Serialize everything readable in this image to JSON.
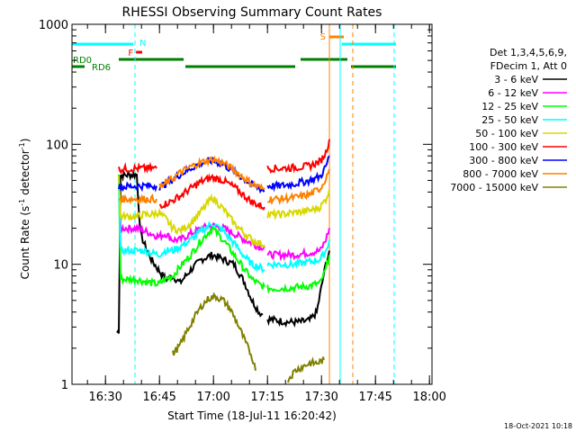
{
  "chart_data": {
    "type": "line",
    "title": "RHESSI Observing Summary Count Rates",
    "xlabel": "Start Time (18-Jul-11 16:20:42)",
    "ylabel_main": "Count Rate (s",
    "ylabel_sup1": "-1",
    "ylabel_mid": " detector",
    "ylabel_sup2": "-1",
    "ylabel_end": ")",
    "x_unit": "minutes since 16:20:42",
    "xlim": [
      0,
      100
    ],
    "ylim": [
      1,
      1000
    ],
    "yscale": "log",
    "x_ticks": [
      {
        "label": "16:30",
        "value": 9.3
      },
      {
        "label": "16:45",
        "value": 24.3
      },
      {
        "label": "17:00",
        "value": 39.3
      },
      {
        "label": "17:15",
        "value": 54.3
      },
      {
        "label": "17:30",
        "value": 69.3
      },
      {
        "label": "17:45",
        "value": 84.3
      },
      {
        "label": "18:00",
        "value": 99.3
      }
    ],
    "y_ticks": [
      {
        "label": "1",
        "value": 1
      },
      {
        "label": "10",
        "value": 10
      },
      {
        "label": "100",
        "value": 100
      },
      {
        "label": "1000",
        "value": 1000
      }
    ],
    "legend_header": [
      "Det 1,3,4,5,6,9,",
      "FDecim 1, Att 0"
    ],
    "legend_position": "right",
    "series": [
      {
        "name": "3 - 6 keV",
        "color": "#000000",
        "segments": [
          [
            [
              12.5,
              2.7
            ],
            [
              13,
              2.8
            ],
            [
              13.5,
              55
            ],
            [
              18,
              56
            ],
            [
              19,
              18
            ],
            [
              20,
              15
            ],
            [
              22,
              11
            ],
            [
              24,
              9
            ],
            [
              26,
              7.5
            ],
            [
              28,
              8
            ],
            [
              30,
              7
            ],
            [
              33,
              9
            ],
            [
              36,
              11
            ],
            [
              39,
              12
            ],
            [
              42,
              11
            ],
            [
              45,
              10
            ],
            [
              48,
              7
            ],
            [
              50,
              5
            ],
            [
              52,
              4
            ],
            [
              53,
              3.8
            ]
          ],
          [
            [
              54.3,
              3.5
            ],
            [
              57,
              3.4
            ],
            [
              60,
              3.3
            ],
            [
              63,
              3.3
            ],
            [
              66,
              3.4
            ],
            [
              68,
              4
            ],
            [
              69.5,
              7
            ],
            [
              70.5,
              10
            ],
            [
              71.5,
              13
            ]
          ]
        ]
      },
      {
        "name": "6 - 12 keV",
        "color": "#ff00ff",
        "segments": [
          [
            [
              13,
              55
            ],
            [
              13.5,
              20
            ],
            [
              18,
              20
            ],
            [
              20,
              19
            ],
            [
              22,
              18
            ],
            [
              24,
              17
            ],
            [
              26,
              18
            ],
            [
              28,
              16
            ],
            [
              30,
              16
            ],
            [
              33,
              18
            ],
            [
              36,
              20
            ],
            [
              39,
              21
            ],
            [
              42,
              20
            ],
            [
              45,
              18
            ],
            [
              48,
              16
            ],
            [
              50,
              15
            ],
            [
              52,
              14
            ],
            [
              53.5,
              14
            ]
          ],
          [
            [
              54.3,
              12
            ],
            [
              58,
              12
            ],
            [
              62,
              12
            ],
            [
              66,
              12.5
            ],
            [
              69,
              13
            ],
            [
              70.5,
              16
            ],
            [
              71.5,
              20
            ]
          ]
        ]
      },
      {
        "name": "12 - 25 keV",
        "color": "#00ff00",
        "segments": [
          [
            [
              13,
              55
            ],
            [
              13.5,
              7.5
            ],
            [
              18,
              7.5
            ],
            [
              20,
              7.2
            ],
            [
              22,
              7
            ],
            [
              24,
              6.8
            ],
            [
              26,
              7.5
            ],
            [
              28,
              8
            ],
            [
              30,
              9.5
            ],
            [
              33,
              12
            ],
            [
              36,
              16
            ],
            [
              39,
              20
            ],
            [
              42,
              16
            ],
            [
              45,
              12
            ],
            [
              48,
              9
            ],
            [
              50,
              7.5
            ],
            [
              52,
              6.8
            ],
            [
              53.5,
              6.5
            ]
          ],
          [
            [
              54.3,
              6.3
            ],
            [
              58,
              6.3
            ],
            [
              62,
              6.4
            ],
            [
              66,
              6.6
            ],
            [
              69,
              7
            ],
            [
              70.5,
              9
            ],
            [
              71.5,
              12
            ]
          ]
        ]
      },
      {
        "name": "25 - 50 keV",
        "color": "#00ffff",
        "segments": [
          [
            [
              13,
              55
            ],
            [
              13.5,
              13
            ],
            [
              18,
              13
            ],
            [
              20,
              13
            ],
            [
              22,
              12.5
            ],
            [
              24,
              12
            ],
            [
              26,
              13
            ],
            [
              28,
              13
            ],
            [
              30,
              14
            ],
            [
              33,
              16
            ],
            [
              36,
              19
            ],
            [
              39,
              22
            ],
            [
              42,
              19
            ],
            [
              45,
              15
            ],
            [
              48,
              11.5
            ],
            [
              50,
              10
            ],
            [
              52,
              9.5
            ],
            [
              53.5,
              9
            ]
          ],
          [
            [
              54.3,
              10
            ],
            [
              58,
              10
            ],
            [
              62,
              10
            ],
            [
              66,
              10.5
            ],
            [
              69,
              11
            ],
            [
              70.5,
              13
            ],
            [
              71.5,
              16
            ]
          ]
        ]
      },
      {
        "name": "50 - 100 keV",
        "color": "#d8d800",
        "segments": [
          [
            [
              13,
              55
            ],
            [
              13.5,
              25
            ],
            [
              18,
              25
            ],
            [
              20,
              26
            ],
            [
              22,
              26
            ],
            [
              24,
              27
            ],
            [
              26,
              24
            ],
            [
              28,
              20
            ],
            [
              30,
              19
            ],
            [
              33,
              22
            ],
            [
              36,
              28
            ],
            [
              39,
              36
            ],
            [
              42,
              29
            ],
            [
              45,
              22
            ],
            [
              48,
              18
            ],
            [
              50,
              16
            ],
            [
              52,
              15
            ],
            [
              53.5,
              14.5
            ]
          ],
          [
            [
              54.3,
              26
            ],
            [
              58,
              26
            ],
            [
              62,
              27
            ],
            [
              66,
              28
            ],
            [
              69,
              30
            ],
            [
              70.5,
              35
            ],
            [
              71.5,
              42
            ]
          ]
        ]
      },
      {
        "name": "100 - 300 keV",
        "color": "#ff0000",
        "segments": [
          [
            [
              13,
              62
            ],
            [
              18,
              63
            ],
            [
              20,
              63
            ],
            [
              22,
              63
            ],
            [
              23.5,
              63
            ]
          ],
          [
            [
              24.3,
              31
            ],
            [
              26,
              32
            ],
            [
              28,
              34
            ],
            [
              30,
              37
            ],
            [
              33,
              43
            ],
            [
              36,
              49
            ],
            [
              39,
              53
            ],
            [
              42,
              50
            ],
            [
              45,
              44
            ],
            [
              48,
              37
            ],
            [
              50,
              33
            ],
            [
              52,
              31
            ],
            [
              53.5,
              30
            ]
          ],
          [
            [
              54.3,
              63
            ],
            [
              58,
              63
            ],
            [
              62,
              64
            ],
            [
              66,
              66
            ],
            [
              69,
              72
            ],
            [
              70.5,
              85
            ],
            [
              71.5,
              110
            ]
          ]
        ]
      },
      {
        "name": "300 - 800 keV",
        "color": "#0000ff",
        "segments": [
          [
            [
              13,
              44
            ],
            [
              18,
              45
            ],
            [
              20,
              45
            ],
            [
              22,
              45
            ],
            [
              23.5,
              45
            ]
          ],
          [
            [
              24.3,
              44
            ],
            [
              26,
              47
            ],
            [
              28,
              51
            ],
            [
              30,
              56
            ],
            [
              33,
              63
            ],
            [
              36,
              70
            ],
            [
              39,
              73
            ],
            [
              42,
              68
            ],
            [
              45,
              59
            ],
            [
              48,
              51
            ],
            [
              50,
              46
            ],
            [
              52,
              43
            ],
            [
              53.5,
              41
            ]
          ],
          [
            [
              54.3,
              45
            ],
            [
              58,
              45
            ],
            [
              62,
              47
            ],
            [
              66,
              50
            ],
            [
              69,
              54
            ],
            [
              70.5,
              65
            ],
            [
              71.5,
              80
            ]
          ]
        ]
      },
      {
        "name": "800 - 7000 keV",
        "color": "#ff8000",
        "segments": [
          [
            [
              13,
              35
            ],
            [
              18,
              35
            ],
            [
              20,
              35
            ],
            [
              22,
              35
            ],
            [
              23.5,
              35
            ]
          ],
          [
            [
              24.3,
              44
            ],
            [
              26,
              47
            ],
            [
              28,
              52
            ],
            [
              30,
              58
            ],
            [
              33,
              65
            ],
            [
              36,
              71
            ],
            [
              39,
              75
            ],
            [
              42,
              70
            ],
            [
              45,
              61
            ],
            [
              48,
              52
            ],
            [
              50,
              47
            ],
            [
              52,
              44
            ],
            [
              53.5,
              42
            ]
          ],
          [
            [
              54.3,
              35
            ],
            [
              58,
              35
            ],
            [
              62,
              36
            ],
            [
              66,
              38
            ],
            [
              69,
              43
            ],
            [
              70.5,
              52
            ],
            [
              71.5,
              62
            ]
          ]
        ]
      },
      {
        "name": "7000 - 15000 keV",
        "color": "#808000",
        "segments": [
          [
            [
              28,
              1.8
            ],
            [
              30,
              2.1
            ],
            [
              32,
              2.8
            ],
            [
              34,
              3.6
            ],
            [
              36,
              4.5
            ],
            [
              38,
              5.2
            ],
            [
              40,
              5.4
            ],
            [
              42,
              5.0
            ],
            [
              44,
              4.2
            ],
            [
              46,
              3.2
            ],
            [
              48,
              2.3
            ],
            [
              50,
              1.7
            ],
            [
              51,
              1.3
            ]
          ],
          [
            [
              60,
              1.1
            ],
            [
              62,
              1.3
            ],
            [
              64,
              1.4
            ],
            [
              66,
              1.5
            ],
            [
              68,
              1.5
            ],
            [
              70,
              1.6
            ]
          ]
        ]
      }
    ],
    "attenuator_spans": [
      {
        "label": "RD0",
        "color": "#008000",
        "level": "upper",
        "ranges": [
          [
            13,
            31
          ],
          [
            63.5,
            76.5
          ]
        ]
      },
      {
        "label": "RD6",
        "color": "#008000",
        "level": "lower",
        "ranges": [
          [
            0,
            3.5
          ],
          [
            31.5,
            62
          ],
          [
            77.5,
            90
          ]
        ]
      },
      {
        "label": "F",
        "color": "#ff0000",
        "level": "flare",
        "ranges": [
          [
            17.8,
            19.5
          ]
        ]
      },
      {
        "label": "N",
        "color": "#00ffff",
        "level": "night",
        "ranges": [
          [
            0,
            17
          ],
          [
            75,
            90
          ]
        ]
      },
      {
        "label": "S",
        "color": "#ff8000",
        "level": "saa",
        "ranges": [
          [
            71.5,
            75.5
          ]
        ]
      }
    ],
    "markers": [
      {
        "x": 17.5,
        "color": "#00ffff",
        "style": "dashed"
      },
      {
        "x": 74.5,
        "color": "#00ffff",
        "style": "solid"
      },
      {
        "x": 89.5,
        "color": "#00ffff",
        "style": "dashed"
      },
      {
        "x": 71.5,
        "color": "#ff8000",
        "style": "solid"
      },
      {
        "x": 78.0,
        "color": "#ff8000",
        "style": "dashed"
      }
    ],
    "timestamp": "18-Oct-2021 10:18"
  }
}
